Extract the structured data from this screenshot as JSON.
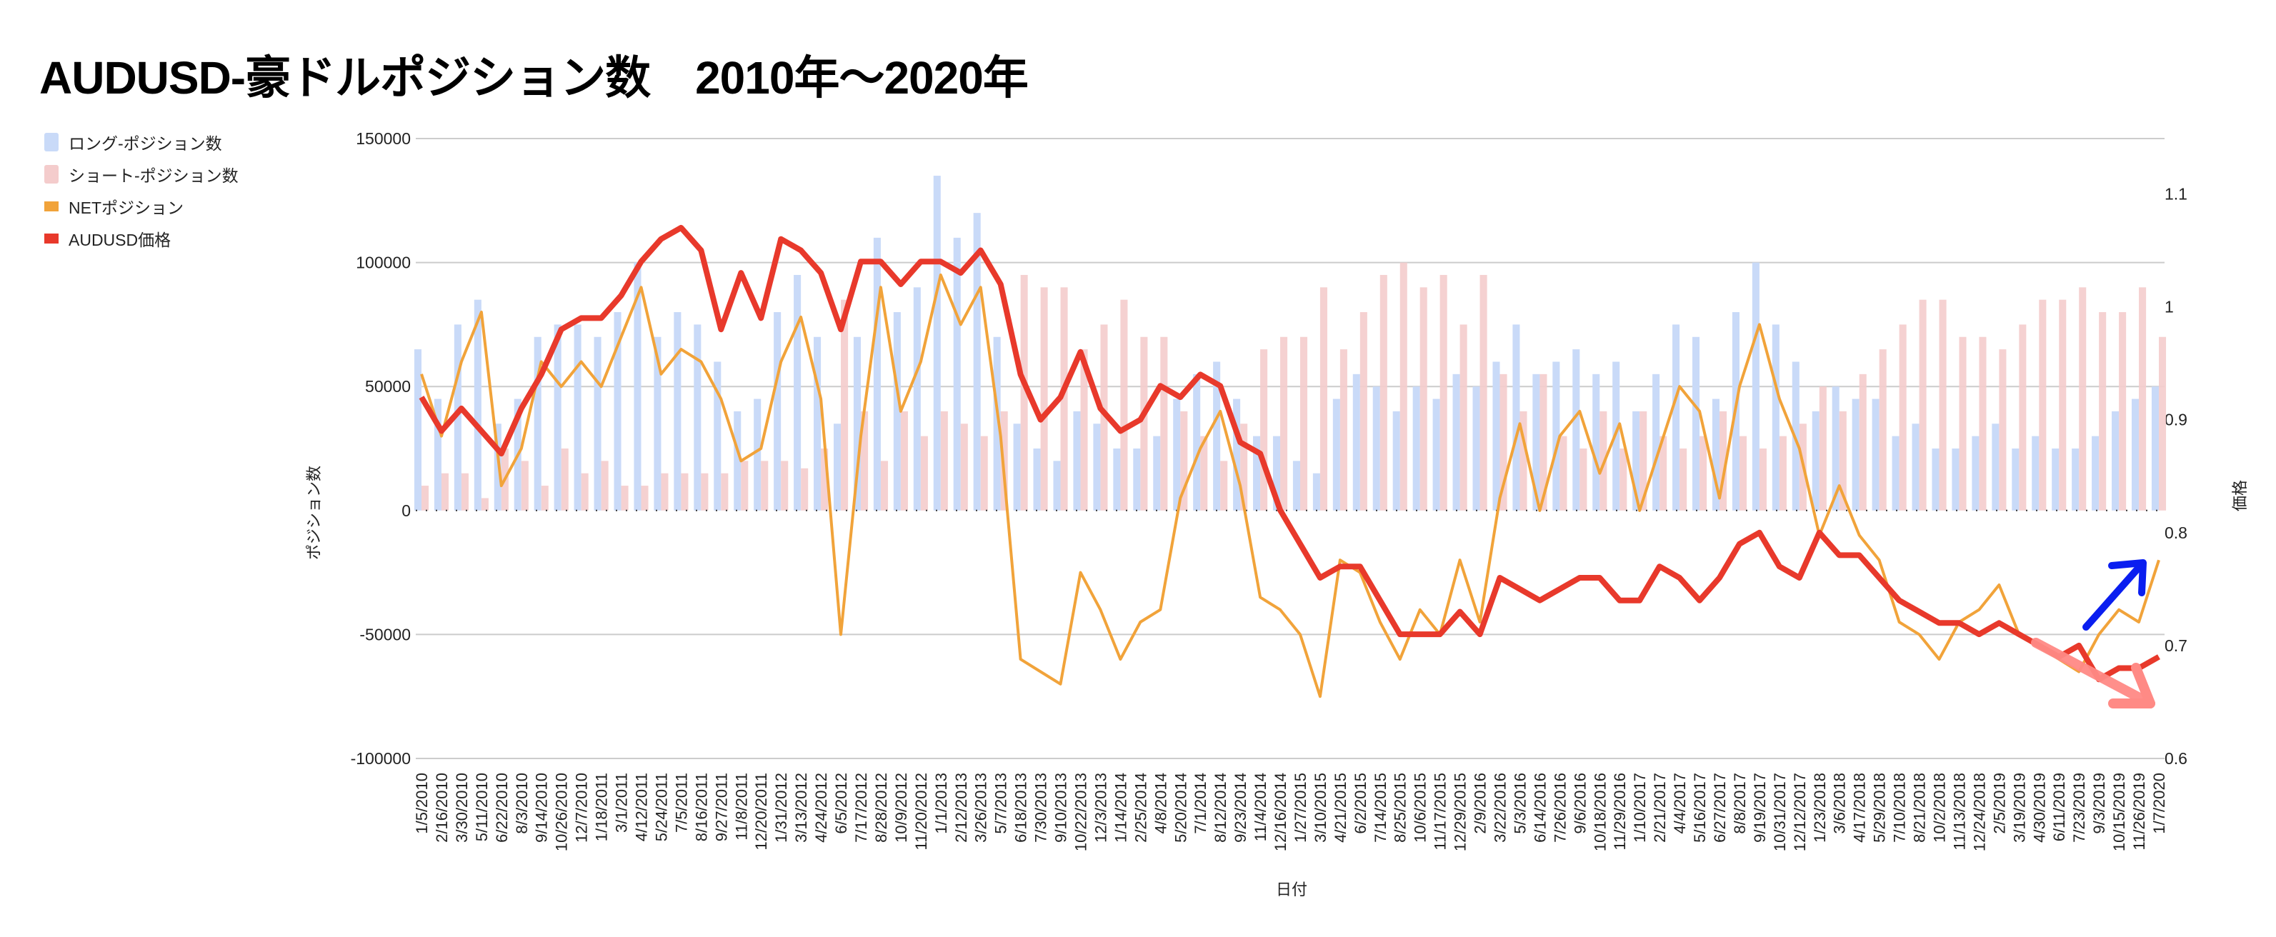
{
  "title": "AUDUSD-豪ドルポジション数　2010年～2020年",
  "legend": [
    {
      "label": "ロング-ポジション数",
      "color": "#c9daf8",
      "kind": "bar"
    },
    {
      "label": "ショート-ポジション数",
      "color": "#f4cccc",
      "kind": "bar"
    },
    {
      "label": "NETポジション",
      "color": "#f1a33a",
      "kind": "line"
    },
    {
      "label": "AUDUSD価格",
      "color": "#e8392b",
      "kind": "line"
    }
  ],
  "chart_data": {
    "type": "bar+line",
    "title": "AUDUSD-豪ドルポジション数　2010年～2020年",
    "xlabel": "日付",
    "ylabel": "ポジション数",
    "y2label": "価格",
    "ylim": [
      -100000,
      150000
    ],
    "yticks": [
      "150000",
      "100000",
      "50000",
      "0",
      "-50000",
      "-100000"
    ],
    "y2lim": [
      0.6,
      1.149
    ],
    "y2ticks": [
      "1.1",
      "1",
      "0.9",
      "0.8",
      "0.7",
      "0.6"
    ],
    "grid": true,
    "legend_position": "top-left",
    "x": [
      "1/5/2010",
      "2/16/2010",
      "3/30/2010",
      "5/11/2010",
      "6/22/2010",
      "8/3/2010",
      "9/14/2010",
      "10/26/2010",
      "12/7/2010",
      "1/18/2011",
      "3/1/2011",
      "4/12/2011",
      "5/24/2011",
      "7/5/2011",
      "8/16/2011",
      "9/27/2011",
      "11/8/2011",
      "12/20/2011",
      "1/31/2012",
      "3/13/2012",
      "4/24/2012",
      "6/5/2012",
      "7/17/2012",
      "8/28/2012",
      "10/9/2012",
      "11/20/2012",
      "1/1/2013",
      "2/12/2013",
      "3/26/2013",
      "5/7/2013",
      "6/18/2013",
      "7/30/2013",
      "9/10/2013",
      "10/22/2013",
      "12/3/2013",
      "1/14/2014",
      "2/25/2014",
      "4/8/2014",
      "5/20/2014",
      "7/1/2014",
      "8/12/2014",
      "9/23/2014",
      "11/4/2014",
      "12/16/2014",
      "1/27/2015",
      "3/10/2015",
      "4/21/2015",
      "6/2/2015",
      "7/14/2015",
      "8/25/2015",
      "10/6/2015",
      "11/17/2015",
      "12/29/2015",
      "2/9/2016",
      "3/22/2016",
      "5/3/2016",
      "6/14/2016",
      "7/26/2016",
      "9/6/2016",
      "10/18/2016",
      "11/29/2016",
      "1/10/2017",
      "2/21/2017",
      "4/4/2017",
      "5/16/2017",
      "6/27/2017",
      "8/8/2017",
      "9/19/2017",
      "10/31/2017",
      "12/12/2017",
      "1/23/2018",
      "3/6/2018",
      "4/17/2018",
      "5/29/2018",
      "7/10/2018",
      "8/21/2018",
      "10/2/2018",
      "11/13/2018",
      "12/24/2018",
      "2/5/2019",
      "3/19/2019",
      "4/30/2019",
      "6/11/2019",
      "7/23/2019",
      "9/3/2019",
      "10/15/2019",
      "11/26/2019",
      "1/7/2020"
    ],
    "series": [
      {
        "name": "ロング-ポジション数",
        "type": "bar",
        "axis": "left",
        "color": "#c9daf8",
        "values": [
          65000,
          45000,
          75000,
          85000,
          35000,
          45000,
          70000,
          75000,
          75000,
          70000,
          80000,
          100000,
          70000,
          80000,
          75000,
          60000,
          40000,
          45000,
          80000,
          95000,
          70000,
          35000,
          70000,
          110000,
          80000,
          90000,
          135000,
          110000,
          120000,
          70000,
          35000,
          25000,
          20000,
          40000,
          35000,
          25000,
          25000,
          30000,
          45000,
          55000,
          60000,
          45000,
          30000,
          30000,
          20000,
          15000,
          45000,
          55000,
          50000,
          40000,
          50000,
          45000,
          55000,
          50000,
          60000,
          75000,
          55000,
          60000,
          65000,
          55000,
          60000,
          40000,
          55000,
          75000,
          70000,
          45000,
          80000,
          100000,
          75000,
          60000,
          40000,
          50000,
          45000,
          45000,
          30000,
          35000,
          25000,
          25000,
          30000,
          35000,
          25000,
          30000,
          25000,
          25000,
          30000,
          40000,
          45000,
          50000
        ]
      },
      {
        "name": "ショート-ポジション数",
        "type": "bar",
        "axis": "left",
        "color": "#f4cccc",
        "values": [
          10000,
          15000,
          15000,
          5000,
          25000,
          20000,
          10000,
          25000,
          15000,
          20000,
          10000,
          10000,
          15000,
          15000,
          15000,
          15000,
          20000,
          20000,
          20000,
          17000,
          25000,
          85000,
          40000,
          20000,
          40000,
          30000,
          40000,
          35000,
          30000,
          40000,
          95000,
          90000,
          90000,
          65000,
          75000,
          85000,
          70000,
          70000,
          40000,
          30000,
          20000,
          35000,
          65000,
          70000,
          70000,
          90000,
          65000,
          80000,
          95000,
          100000,
          90000,
          95000,
          75000,
          95000,
          55000,
          40000,
          55000,
          30000,
          25000,
          40000,
          25000,
          40000,
          30000,
          25000,
          30000,
          40000,
          30000,
          25000,
          30000,
          35000,
          50000,
          40000,
          55000,
          65000,
          75000,
          85000,
          85000,
          70000,
          70000,
          65000,
          75000,
          85000,
          85000,
          90000,
          80000,
          80000,
          90000,
          70000
        ]
      },
      {
        "name": "NETポジション",
        "type": "line",
        "axis": "left",
        "color": "#f1a33a",
        "values": [
          55000,
          30000,
          60000,
          80000,
          10000,
          25000,
          60000,
          50000,
          60000,
          50000,
          70000,
          90000,
          55000,
          65000,
          60000,
          45000,
          20000,
          25000,
          60000,
          78000,
          45000,
          -50000,
          30000,
          90000,
          40000,
          60000,
          95000,
          75000,
          90000,
          30000,
          -60000,
          -65000,
          -70000,
          -25000,
          -40000,
          -60000,
          -45000,
          -40000,
          5000,
          25000,
          40000,
          10000,
          -35000,
          -40000,
          -50000,
          -75000,
          -20000,
          -25000,
          -45000,
          -60000,
          -40000,
          -50000,
          -20000,
          -45000,
          5000,
          35000,
          0,
          30000,
          40000,
          15000,
          35000,
          0,
          25000,
          50000,
          40000,
          5000,
          50000,
          75000,
          45000,
          25000,
          -10000,
          10000,
          -10000,
          -20000,
          -45000,
          -50000,
          -60000,
          -45000,
          -40000,
          -30000,
          -50000,
          -55000,
          -60000,
          -65000,
          -50000,
          -40000,
          -45000,
          -20000
        ]
      },
      {
        "name": "AUDUSD価格",
        "type": "line",
        "axis": "right",
        "color": "#e8392b",
        "values": [
          0.92,
          0.89,
          0.91,
          0.89,
          0.87,
          0.91,
          0.94,
          0.98,
          0.99,
          0.99,
          1.01,
          1.04,
          1.06,
          1.07,
          1.05,
          0.98,
          1.03,
          0.99,
          1.06,
          1.05,
          1.03,
          0.98,
          1.04,
          1.04,
          1.02,
          1.04,
          1.04,
          1.03,
          1.05,
          1.02,
          0.94,
          0.9,
          0.92,
          0.96,
          0.91,
          0.89,
          0.9,
          0.93,
          0.92,
          0.94,
          0.93,
          0.88,
          0.87,
          0.82,
          0.79,
          0.76,
          0.77,
          0.77,
          0.74,
          0.71,
          0.71,
          0.71,
          0.73,
          0.71,
          0.76,
          0.75,
          0.74,
          0.75,
          0.76,
          0.76,
          0.74,
          0.74,
          0.77,
          0.76,
          0.74,
          0.76,
          0.79,
          0.8,
          0.77,
          0.76,
          0.8,
          0.78,
          0.78,
          0.76,
          0.74,
          0.73,
          0.72,
          0.72,
          0.71,
          0.72,
          0.71,
          0.7,
          0.69,
          0.7,
          0.67,
          0.68,
          0.68,
          0.69
        ]
      }
    ],
    "annotations": [
      {
        "type": "arrow",
        "color": "#0a1ef0",
        "direction": "up-right"
      },
      {
        "type": "arrow",
        "color": "#ff8a85",
        "direction": "down-right"
      }
    ]
  }
}
